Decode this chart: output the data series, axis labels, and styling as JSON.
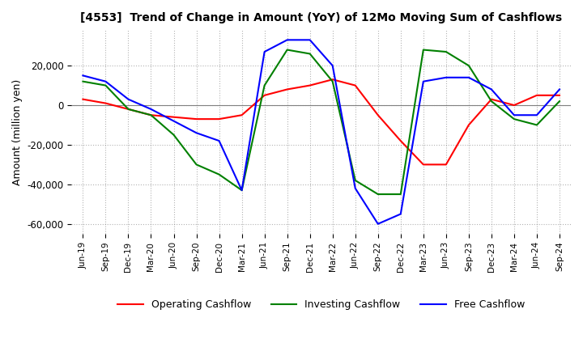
{
  "title": "[4553]  Trend of Change in Amount (YoY) of 12Mo Moving Sum of Cashflows",
  "ylabel": "Amount (million yen)",
  "ylim": [
    -65000,
    38000
  ],
  "yticks": [
    -60000,
    -40000,
    -20000,
    0,
    20000
  ],
  "legend": [
    "Operating Cashflow",
    "Investing Cashflow",
    "Free Cashflow"
  ],
  "colors": [
    "red",
    "green",
    "blue"
  ],
  "x_labels": [
    "Jun-19",
    "Sep-19",
    "Dec-19",
    "Mar-20",
    "Jun-20",
    "Sep-20",
    "Dec-20",
    "Mar-21",
    "Jun-21",
    "Sep-21",
    "Dec-21",
    "Mar-22",
    "Jun-22",
    "Sep-22",
    "Dec-22",
    "Mar-23",
    "Jun-23",
    "Sep-23",
    "Dec-23",
    "Mar-24",
    "Jun-24",
    "Sep-24"
  ],
  "operating": [
    3000,
    1000,
    -2000,
    -5000,
    -6000,
    -7000,
    -7000,
    -5000,
    5000,
    8000,
    10000,
    13000,
    10000,
    -5000,
    -18000,
    -30000,
    -30000,
    -10000,
    3000,
    0,
    5000,
    5000
  ],
  "investing": [
    12000,
    10000,
    -2000,
    -5000,
    -15000,
    -30000,
    -35000,
    -43000,
    10000,
    28000,
    26000,
    12000,
    -38000,
    -45000,
    -45000,
    28000,
    27000,
    20000,
    2000,
    -7000,
    -10000,
    2000
  ],
  "free": [
    15000,
    12000,
    3000,
    -2000,
    -8000,
    -14000,
    -18000,
    -43000,
    27000,
    33000,
    33000,
    20000,
    -42000,
    -60000,
    -55000,
    12000,
    14000,
    14000,
    8000,
    -5000,
    -5000,
    8000
  ]
}
